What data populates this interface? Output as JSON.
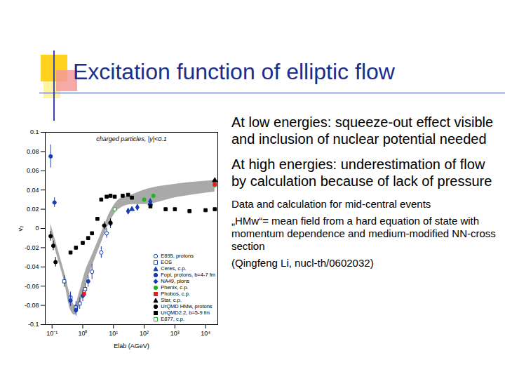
{
  "slide": {
    "title": "Excitation function of elliptic flow",
    "bullets": [
      "At low energies: squeeze-out effect visible and inclusion of nuclear potential needed",
      "At high energies: underestimation of flow by calculation because of lack of pressure"
    ],
    "notes": [
      "Data and calculation for mid-central events",
      "„HMw“= mean field from a hard equation of state with momentum dependence and medium-modified NN-cross section",
      "(Qingfeng Li, nucl-th/0602032)"
    ]
  },
  "chart_data": {
    "type": "scatter",
    "title": "charged particles, |y|<0.1",
    "x_label": "Elab (AGeV)",
    "y_label": "v₂",
    "log": "x",
    "xlim": [
      0.06,
      25000
    ],
    "xticks": [
      {
        "value": 0.1,
        "label": "10⁻¹"
      },
      {
        "value": 1,
        "label": "10⁰"
      },
      {
        "value": 10,
        "label": "10¹"
      },
      {
        "value": 100,
        "label": "10²"
      },
      {
        "value": 1000,
        "label": "10³"
      },
      {
        "value": 10000,
        "label": "10⁴"
      }
    ],
    "ylim": [
      -0.1,
      0.1
    ],
    "yticks": [
      -0.1,
      -0.08,
      -0.06,
      -0.04,
      -0.02,
      0,
      0.02,
      0.04,
      0.06,
      0.08,
      0.1
    ],
    "legend": "bottom-right",
    "band": {
      "color": "#a9a9a9",
      "x": [
        0.09,
        0.15,
        0.25,
        0.4,
        0.55,
        0.8,
        1.2,
        2,
        4,
        8,
        15,
        40,
        100,
        1000,
        20000
      ],
      "low": [
        -0.005,
        -0.03,
        -0.055,
        -0.085,
        -0.09,
        -0.08,
        -0.06,
        -0.04,
        -0.015,
        0.008,
        0.02,
        0.025,
        0.025,
        0.032,
        0.038
      ],
      "high": [
        0.005,
        -0.02,
        -0.045,
        -0.07,
        -0.08,
        -0.065,
        -0.045,
        -0.028,
        -0.005,
        0.018,
        0.03,
        0.035,
        0.04,
        0.046,
        0.05
      ]
    },
    "series": [
      {
        "name": "E895, protons",
        "color": "#1a3fb0",
        "marker": "open circle",
        "x": [
          2,
          4,
          6,
          8
        ],
        "values": [
          -0.045,
          -0.025,
          -0.005,
          0.005
        ],
        "errors": [
          0.008,
          0.006,
          0.005,
          0.005
        ]
      },
      {
        "name": "EOS",
        "color": "#1a3fb0",
        "marker": "open square",
        "x": [
          0.25,
          0.4,
          0.6,
          0.8,
          1.2
        ],
        "values": [
          -0.055,
          -0.072,
          -0.082,
          -0.078,
          -0.063
        ],
        "errors": [
          0.006,
          0.006,
          0.006,
          0.006,
          0.006
        ]
      },
      {
        "name": "Ceres, c.p.",
        "color": "#1a3fb0",
        "marker": "triangle",
        "x": [
          40,
          158
        ],
        "values": [
          0.02,
          0.026
        ]
      },
      {
        "name": "Fopi, protons, b=4-7 fm",
        "color": "#1a3fb0",
        "marker": "circle",
        "x": [
          0.09,
          0.12,
          0.4,
          0.6,
          1,
          1.5
        ],
        "values": [
          0.075,
          0.027,
          -0.075,
          -0.085,
          -0.07,
          -0.055
        ],
        "errors": [
          0.012,
          0.005,
          0.006,
          0.006,
          0.006,
          0.006
        ]
      },
      {
        "name": "NA49, pions",
        "color": "#1a3fb0",
        "marker": "diamond",
        "x": [
          30,
          60,
          158
        ],
        "values": [
          0.018,
          0.022,
          0.028
        ],
        "errors": [
          0.003,
          0.003,
          0.003
        ]
      },
      {
        "name": "Phenix, c.p.",
        "color": "#22b522",
        "marker": "circle",
        "x": [
          100,
          200,
          20000
        ],
        "values": [
          0.03,
          0.034,
          0.045
        ]
      },
      {
        "name": "Phobos, c.p.",
        "color": "#e02020",
        "marker": "square",
        "x": [
          1.1,
          20000
        ],
        "values": [
          -0.068,
          0.046
        ]
      },
      {
        "name": "Star, c.p.",
        "color": "#000000",
        "marker": "triangle",
        "x": [
          20000
        ],
        "values": [
          0.05
        ]
      },
      {
        "name": "UrQMD HMw, protons",
        "color": "#000000",
        "marker": "circle",
        "x": [
          0.09,
          0.11,
          0.13,
          5,
          8
        ],
        "values": [
          -0.008,
          -0.018,
          -0.035,
          0.003,
          0.006
        ],
        "errors": [
          0.005,
          0.005,
          0.005,
          0.004,
          0.004
        ]
      },
      {
        "name": "UrQMD2.2, b=5-9 fm",
        "color": "#000000",
        "marker": "square",
        "x": [
          0.4,
          0.6,
          1,
          1.5,
          2,
          3,
          4,
          6,
          8,
          11,
          20,
          30,
          40,
          160,
          500,
          1000,
          3000,
          10000,
          20000
        ],
        "values": [
          -0.025,
          -0.02,
          -0.015,
          -0.01,
          -0.005,
          0.01,
          0.03,
          0.033,
          0.034,
          0.033,
          0.034,
          0.035,
          0.032,
          0.023,
          0.02,
          0.02,
          0.018,
          0.019,
          0.02
        ]
      },
      {
        "name": "E877, c.p.",
        "color": "#22b522",
        "marker": "open square",
        "x": [
          11
        ],
        "values": [
          0.02
        ]
      }
    ]
  }
}
